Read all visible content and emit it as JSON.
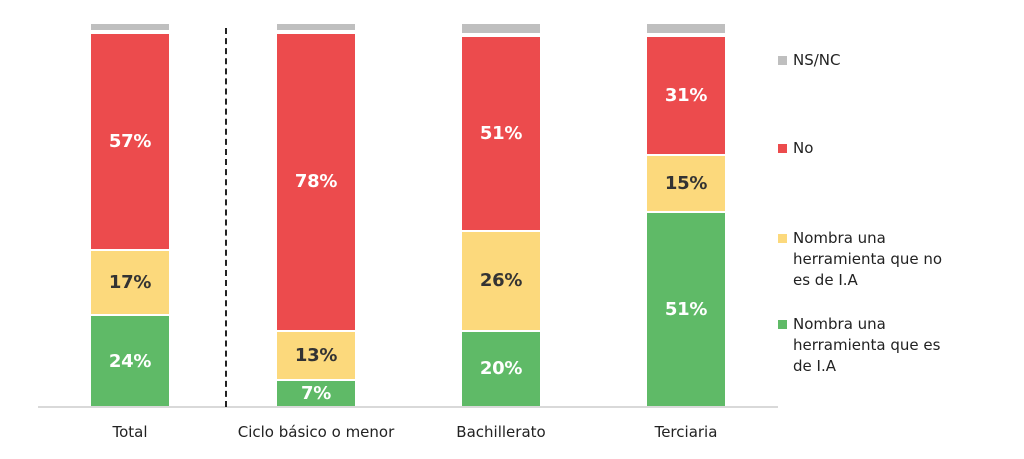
{
  "chart_data": {
    "type": "bar",
    "stacked": true,
    "title": "",
    "xlabel": "",
    "ylabel": "",
    "ylim": [
      0,
      100
    ],
    "categories": [
      "Total",
      "Ciclo básico o menor",
      "Bachillerato",
      "Terciaria"
    ],
    "series": [
      {
        "name": "Nombra una herramienta que es de I.A",
        "color": "#5fba67",
        "values": [
          24,
          7,
          20,
          51
        ],
        "labels": [
          "24%",
          "7%",
          "20%",
          "51%"
        ]
      },
      {
        "name": "Nombra una herramienta que no es de I.A",
        "color": "#fcd97c",
        "values": [
          17,
          13,
          26,
          15
        ],
        "labels": [
          "17%",
          "13%",
          "26%",
          "15%"
        ]
      },
      {
        "name": "No",
        "color": "#ec4b4d",
        "values": [
          57,
          78,
          51,
          31
        ],
        "labels": [
          "57%",
          "78%",
          "51%",
          "31%"
        ]
      },
      {
        "name": "NS/NC",
        "color": "#bfbfbf",
        "values": [
          2,
          2,
          3,
          3
        ],
        "labels": [
          "",
          "",
          "",
          ""
        ]
      }
    ],
    "legend_position": "right",
    "grid": false,
    "separator_after_category": "Total"
  },
  "legend": [
    {
      "label": "NS/NC",
      "color": "#bfbfbf"
    },
    {
      "label": "No",
      "color": "#ec4b4d"
    },
    {
      "label": "Nombra una\nherramienta que no\nes de I.A",
      "color": "#fcd97c"
    },
    {
      "label": "Nombra una\nherramienta que es\nde I.A",
      "color": "#5fba67"
    }
  ],
  "categories": [
    "Total",
    "Ciclo básico o menor",
    "Bachillerato",
    "Terciaria"
  ]
}
